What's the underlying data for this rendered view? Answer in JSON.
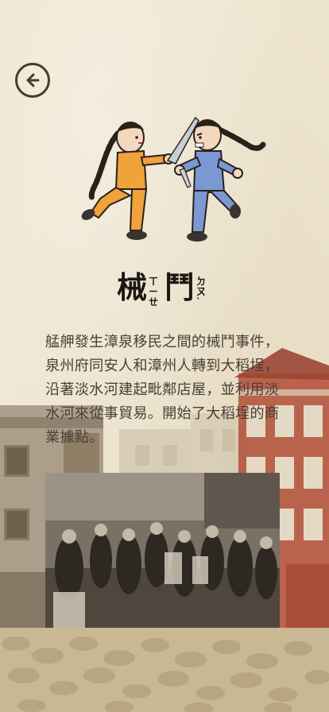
{
  "header": {
    "back_icon": "arrow-left-circle-icon"
  },
  "title": {
    "char1": "械",
    "char1_bopomofo": [
      "ㄒ",
      "ㄧ",
      "ㄝ"
    ],
    "char2": "鬥",
    "char2_bopomofo": [
      "ㄉ",
      "ㄡ",
      "ˋ"
    ]
  },
  "body": {
    "text": "艋舺發生漳泉移民之間的械鬥事件，泉州府同安人和漳州人轉到大稻埕，沿著淡水河建起毗鄰店屋，並利用淡水河來從事貿易。開始了大稻埕的商業據點。"
  },
  "colors": {
    "background": "#eee5cf",
    "text": "#4a4037",
    "title": "#1c1712",
    "icon": "#4b3a2c"
  }
}
